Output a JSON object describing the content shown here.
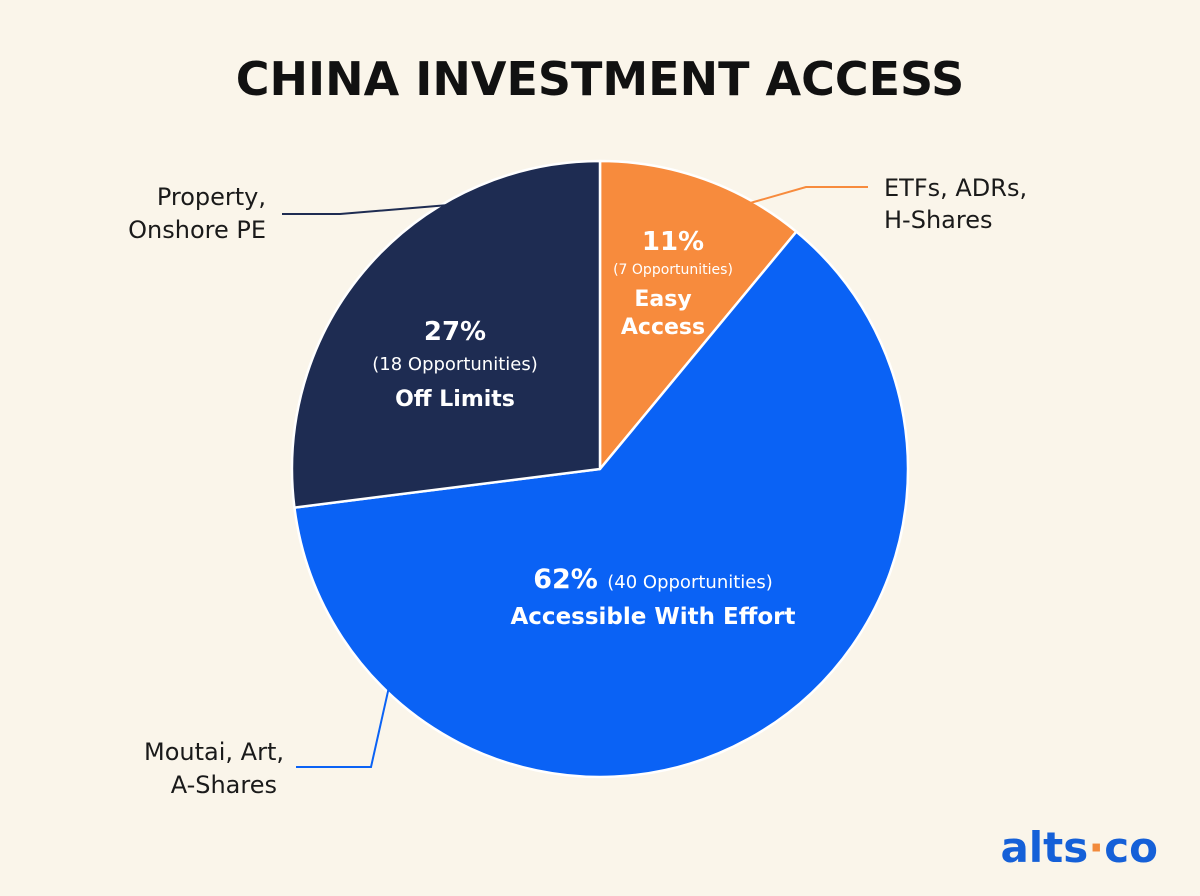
{
  "title": "CHINA INVESTMENT ACCESS",
  "logo": {
    "left": "alts",
    "right": "co",
    "color": "#1560d8",
    "dot_color": "#f28a3c"
  },
  "chart_data": {
    "type": "pie",
    "title": "CHINA INVESTMENT ACCESS",
    "slices": [
      {
        "label": "Easy Access",
        "label_lines": [
          "Easy",
          "Access"
        ],
        "percent": 11,
        "percent_text": "11%",
        "opportunities": 7,
        "count_text": "(7 Opportunities)",
        "examples": [
          "ETFs, ADRs,",
          "H-Shares"
        ],
        "color": "#f78b3d"
      },
      {
        "label": "Accessible With Effort",
        "label_lines": [
          "Accessible With Effort"
        ],
        "percent": 62,
        "percent_text": "62%",
        "opportunities": 40,
        "count_text": "(40 Opportunities)",
        "examples": [
          "Moutai, Art,",
          "A-Shares"
        ],
        "color": "#0a62f5"
      },
      {
        "label": "Off Limits",
        "label_lines": [
          "Off Limits"
        ],
        "percent": 27,
        "percent_text": "27%",
        "opportunities": 18,
        "count_text": "(18 Opportunities)",
        "examples": [
          "Property,",
          "Onshore PE"
        ],
        "color": "#1e2c52"
      }
    ]
  }
}
